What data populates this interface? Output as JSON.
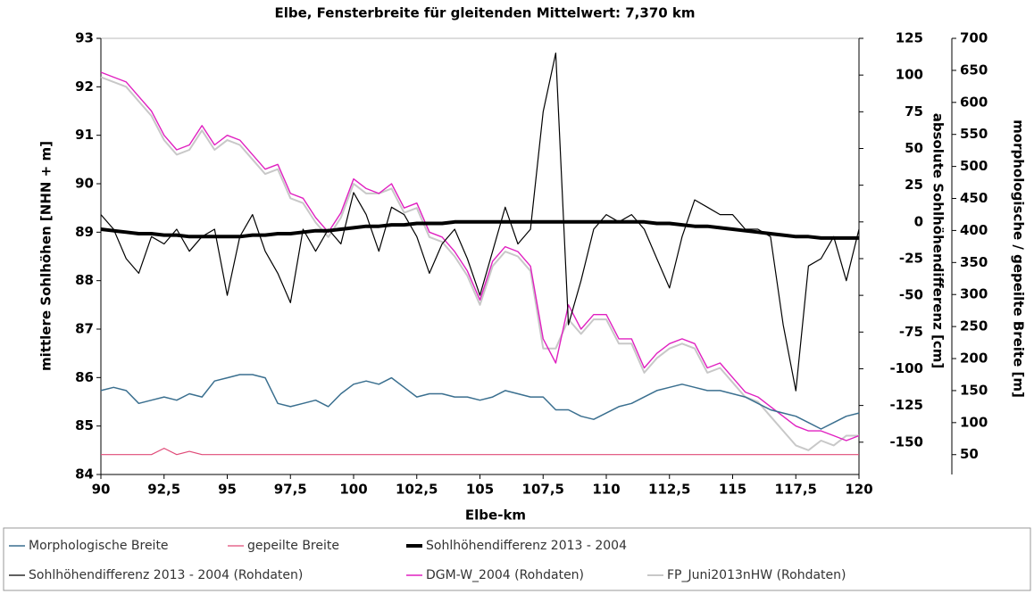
{
  "chart_data": {
    "type": "line",
    "title": "Elbe, Fensterbreite für gleitenden Mittelwert: 7,370 km",
    "x_label": "Elbe-km",
    "y_label": "mittlere Sohlhöhen [NHN + m]",
    "y2_label": "absolute Sohlhöhendifferenz [cm]",
    "y3_label": "morphologische / gepeilte Breite [m]",
    "xlim": [
      90,
      120
    ],
    "xticks": [
      90,
      {
        "value": 92.5,
        "label": "92,5"
      },
      95,
      {
        "value": 97.5,
        "label": "97,5"
      },
      100,
      {
        "value": 102.5,
        "label": "102,5"
      },
      105,
      {
        "value": 107.5,
        "label": "107,5"
      },
      110,
      {
        "value": 112.5,
        "label": "112,5"
      },
      115,
      {
        "value": 117.5,
        "label": "117,5"
      },
      120
    ],
    "ylim": [
      84,
      93
    ],
    "yticks": [
      84,
      85,
      86,
      87,
      88,
      89,
      90,
      91,
      92,
      93
    ],
    "y2lim": [
      -172,
      125
    ],
    "y2ticks": [
      -150,
      -125,
      -100,
      -75,
      -50,
      -25,
      0,
      25,
      50,
      75,
      100,
      125
    ],
    "y3lim": [
      19,
      700
    ],
    "y3ticks": [
      50,
      100,
      150,
      200,
      250,
      300,
      350,
      400,
      450,
      500,
      550,
      600,
      650,
      700
    ],
    "x": [
      90,
      90.5,
      91,
      91.5,
      92,
      92.5,
      93,
      93.5,
      94,
      94.5,
      95,
      95.5,
      96,
      96.5,
      97,
      97.5,
      98,
      98.5,
      99,
      99.5,
      100,
      100.5,
      101,
      101.5,
      102,
      102.5,
      103,
      103.5,
      104,
      104.5,
      105,
      105.5,
      106,
      106.5,
      107,
      107.5,
      108,
      108.5,
      109,
      109.5,
      110,
      110.5,
      111,
      111.5,
      112,
      112.5,
      113,
      113.5,
      114,
      114.5,
      115,
      115.5,
      116,
      116.5,
      117,
      117.5,
      118,
      118.5,
      119,
      119.5,
      120
    ],
    "series": [
      {
        "name": "Morphologische Breite",
        "color": "#3a6f8f",
        "width": 1.5,
        "axis": "y3",
        "values": [
          150,
          155,
          150,
          130,
          135,
          140,
          135,
          145,
          140,
          165,
          170,
          175,
          175,
          170,
          130,
          125,
          130,
          135,
          125,
          145,
          160,
          165,
          160,
          170,
          155,
          140,
          145,
          145,
          140,
          140,
          135,
          140,
          150,
          145,
          140,
          140,
          120,
          120,
          110,
          105,
          115,
          125,
          130,
          140,
          150,
          155,
          160,
          155,
          150,
          150,
          145,
          140,
          130,
          120,
          115,
          110,
          100,
          90,
          100,
          110,
          115
        ]
      },
      {
        "name": "gepeilte Breite",
        "color": "#e04a78",
        "width": 1.2,
        "axis": "y3",
        "values": [
          50,
          50,
          50,
          50,
          50,
          60,
          50,
          55,
          50,
          50,
          50,
          50,
          50,
          50,
          50,
          50,
          50,
          50,
          50,
          50,
          50,
          50,
          50,
          50,
          50,
          50,
          50,
          50,
          50,
          50,
          50,
          50,
          50,
          50,
          50,
          50,
          50,
          50,
          50,
          50,
          50,
          50,
          50,
          50,
          50,
          50,
          50,
          50,
          50,
          50,
          50,
          50,
          50,
          50,
          50,
          50,
          50,
          50,
          50,
          50,
          50
        ]
      },
      {
        "name": "Sohlhöhendifferenz 2013 - 2004",
        "color": "#000000",
        "width": 4,
        "axis": "y2",
        "values": [
          -5,
          -6,
          -7,
          -8,
          -8,
          -9,
          -9,
          -10,
          -10,
          -10,
          -10,
          -10,
          -9,
          -9,
          -8,
          -8,
          -7,
          -6,
          -6,
          -5,
          -4,
          -3,
          -3,
          -2,
          -2,
          -1,
          -1,
          -1,
          0,
          0,
          0,
          0,
          0,
          0,
          0,
          0,
          0,
          0,
          0,
          0,
          0,
          0,
          0,
          0,
          -1,
          -1,
          -2,
          -3,
          -3,
          -4,
          -5,
          -6,
          -7,
          -8,
          -9,
          -10,
          -10,
          -11,
          -11,
          -11,
          -11
        ]
      },
      {
        "name": "Sohlhöhendifferenz 2013 - 2004 (Rohdaten)",
        "color": "#000000",
        "width": 1.2,
        "axis": "y2",
        "values": [
          5,
          -5,
          -25,
          -35,
          -10,
          -15,
          -5,
          -20,
          -10,
          -5,
          -50,
          -10,
          5,
          -20,
          -35,
          -55,
          -5,
          -20,
          -5,
          -15,
          20,
          5,
          -20,
          10,
          5,
          -10,
          -35,
          -15,
          -5,
          -25,
          -50,
          -20,
          10,
          -15,
          -5,
          75,
          115,
          -70,
          -40,
          -5,
          5,
          0,
          5,
          -5,
          -25,
          -45,
          -10,
          15,
          10,
          5,
          5,
          -5,
          -5,
          -10,
          -70,
          -115,
          -30,
          -25,
          -10,
          -40,
          -5
        ]
      },
      {
        "name": "DGM-W_2004 (Rohdaten)",
        "color": "#e020c0",
        "width": 1.4,
        "axis": "y",
        "values": [
          92.3,
          92.2,
          92.1,
          91.8,
          91.5,
          91.0,
          90.7,
          90.8,
          91.2,
          90.8,
          91.0,
          90.9,
          90.6,
          90.3,
          90.4,
          89.8,
          89.7,
          89.3,
          89.0,
          89.4,
          90.1,
          89.9,
          89.8,
          90.0,
          89.5,
          89.6,
          89.0,
          88.9,
          88.6,
          88.2,
          87.6,
          88.4,
          88.7,
          88.6,
          88.3,
          86.8,
          86.3,
          87.5,
          87.0,
          87.3,
          87.3,
          86.8,
          86.8,
          86.2,
          86.5,
          86.7,
          86.8,
          86.7,
          86.2,
          86.3,
          86.0,
          85.7,
          85.6,
          85.4,
          85.2,
          85.0,
          84.9,
          84.9,
          84.8,
          84.7,
          84.8
        ]
      },
      {
        "name": "FP_Juni2013nHW (Rohdaten)",
        "color": "#c8c8c8",
        "width": 2,
        "axis": "y",
        "values": [
          92.2,
          92.1,
          92.0,
          91.7,
          91.4,
          90.9,
          90.6,
          90.7,
          91.1,
          90.7,
          90.9,
          90.8,
          90.5,
          90.2,
          90.3,
          89.7,
          89.6,
          89.2,
          88.9,
          89.3,
          90.0,
          89.8,
          89.8,
          89.9,
          89.4,
          89.5,
          88.9,
          88.8,
          88.5,
          88.1,
          87.5,
          88.3,
          88.6,
          88.5,
          88.2,
          86.6,
          86.6,
          87.2,
          86.9,
          87.2,
          87.2,
          86.7,
          86.7,
          86.1,
          86.4,
          86.6,
          86.7,
          86.6,
          86.1,
          86.2,
          85.9,
          85.6,
          85.5,
          85.2,
          84.9,
          84.6,
          84.5,
          84.7,
          84.6,
          84.8,
          84.8
        ]
      }
    ]
  }
}
